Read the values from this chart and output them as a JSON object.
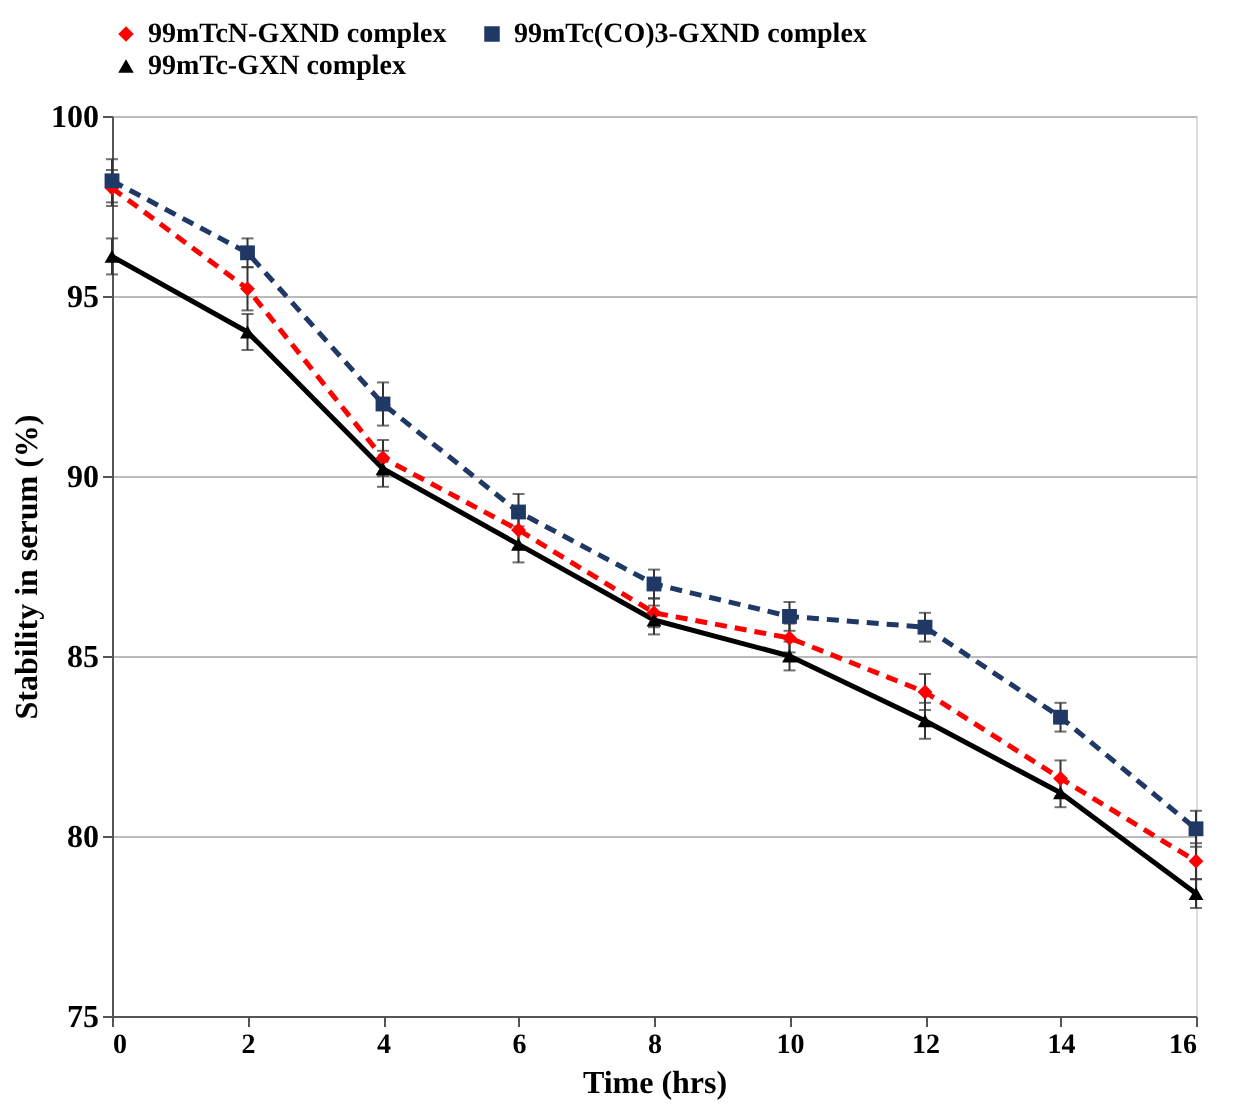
{
  "chart_data": {
    "type": "line",
    "xlabel": "Time (hrs)",
    "ylabel": "Stability in serum   (%)",
    "x": [
      0,
      2,
      4,
      6,
      8,
      10,
      12,
      14,
      16
    ],
    "series": [
      {
        "name": "99mTcN-GXND complex",
        "color": "#ff0000",
        "marker": "diamond",
        "line_style": "dashed",
        "values": [
          98,
          95.2,
          90.5,
          88.5,
          86.2,
          85.5,
          84,
          81.6,
          79.3
        ],
        "errors": [
          0.5,
          0.6,
          0.5,
          0.5,
          0.4,
          0.4,
          0.5,
          0.5,
          0.5
        ]
      },
      {
        "name": "99mTc(CO)3-GXND complex",
        "color": "#1f3864",
        "marker": "square",
        "line_style": "dashed",
        "values": [
          98.2,
          96.2,
          92,
          89,
          87,
          86.1,
          85.8,
          83.3,
          80.2
        ],
        "errors": [
          0.6,
          0.4,
          0.6,
          0.5,
          0.4,
          0.4,
          0.4,
          0.4,
          0.5
        ]
      },
      {
        "name": "99mTc-GXN complex",
        "color": "#000000",
        "marker": "triangle",
        "line_style": "solid",
        "values": [
          96.1,
          94,
          90.2,
          88.1,
          86,
          85,
          83.2,
          81.2,
          78.4
        ],
        "errors": [
          0.5,
          0.5,
          0.5,
          0.5,
          0.4,
          0.4,
          0.5,
          0.4,
          0.4
        ]
      }
    ],
    "xlim": [
      0,
      16
    ],
    "xticks": [
      0,
      2,
      4,
      6,
      8,
      10,
      12,
      14,
      16
    ],
    "ylim": [
      75,
      100
    ],
    "yticks": [
      75,
      80,
      85,
      90,
      95,
      100
    ],
    "grid": "y",
    "legend": "top"
  }
}
